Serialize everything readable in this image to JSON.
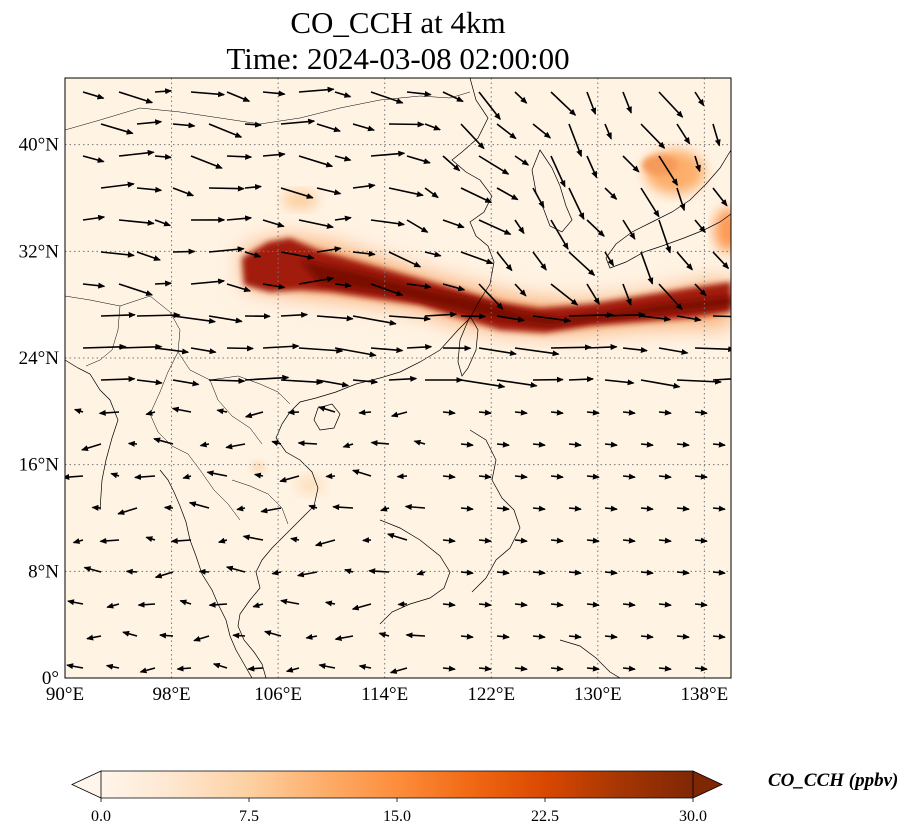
{
  "title": {
    "line1": "CO_CCH at 4km",
    "line2": "Time: 2024-03-08 02:00:00"
  },
  "map": {
    "extent": {
      "lon": [
        90,
        140
      ],
      "lat": [
        0,
        45
      ]
    },
    "lon_ticks": [
      {
        "value": 90,
        "label": "90°E"
      },
      {
        "value": 98,
        "label": "98°E"
      },
      {
        "value": 106,
        "label": "106°E"
      },
      {
        "value": 114,
        "label": "114°E"
      },
      {
        "value": 122,
        "label": "122°E"
      },
      {
        "value": 130,
        "label": "130°E"
      },
      {
        "value": 138,
        "label": "138°E"
      }
    ],
    "lat_ticks": [
      {
        "value": 0,
        "label": "0°"
      },
      {
        "value": 8,
        "label": "8°N"
      },
      {
        "value": 16,
        "label": "16°N"
      },
      {
        "value": 24,
        "label": "24°N"
      },
      {
        "value": 32,
        "label": "32°N"
      },
      {
        "value": 40,
        "label": "40°N"
      }
    ],
    "gridlines": "dotted"
  },
  "colorbar": {
    "label": "CO_CCH (ppbv)",
    "colormap": [
      "#fff5eb",
      "#fee6ce",
      "#fdd0a2",
      "#fdae6b",
      "#fd8d3c",
      "#f16913",
      "#d94801",
      "#a63603",
      "#7f2704"
    ],
    "min": 0,
    "max": 30,
    "extend": "both",
    "ticks": [
      {
        "value": 0,
        "label": "0.0"
      },
      {
        "value": 7.5,
        "label": "7.5"
      },
      {
        "value": 15,
        "label": "15.0"
      },
      {
        "value": 22.5,
        "label": "22.5"
      },
      {
        "value": 30,
        "label": "30.0"
      }
    ]
  }
}
